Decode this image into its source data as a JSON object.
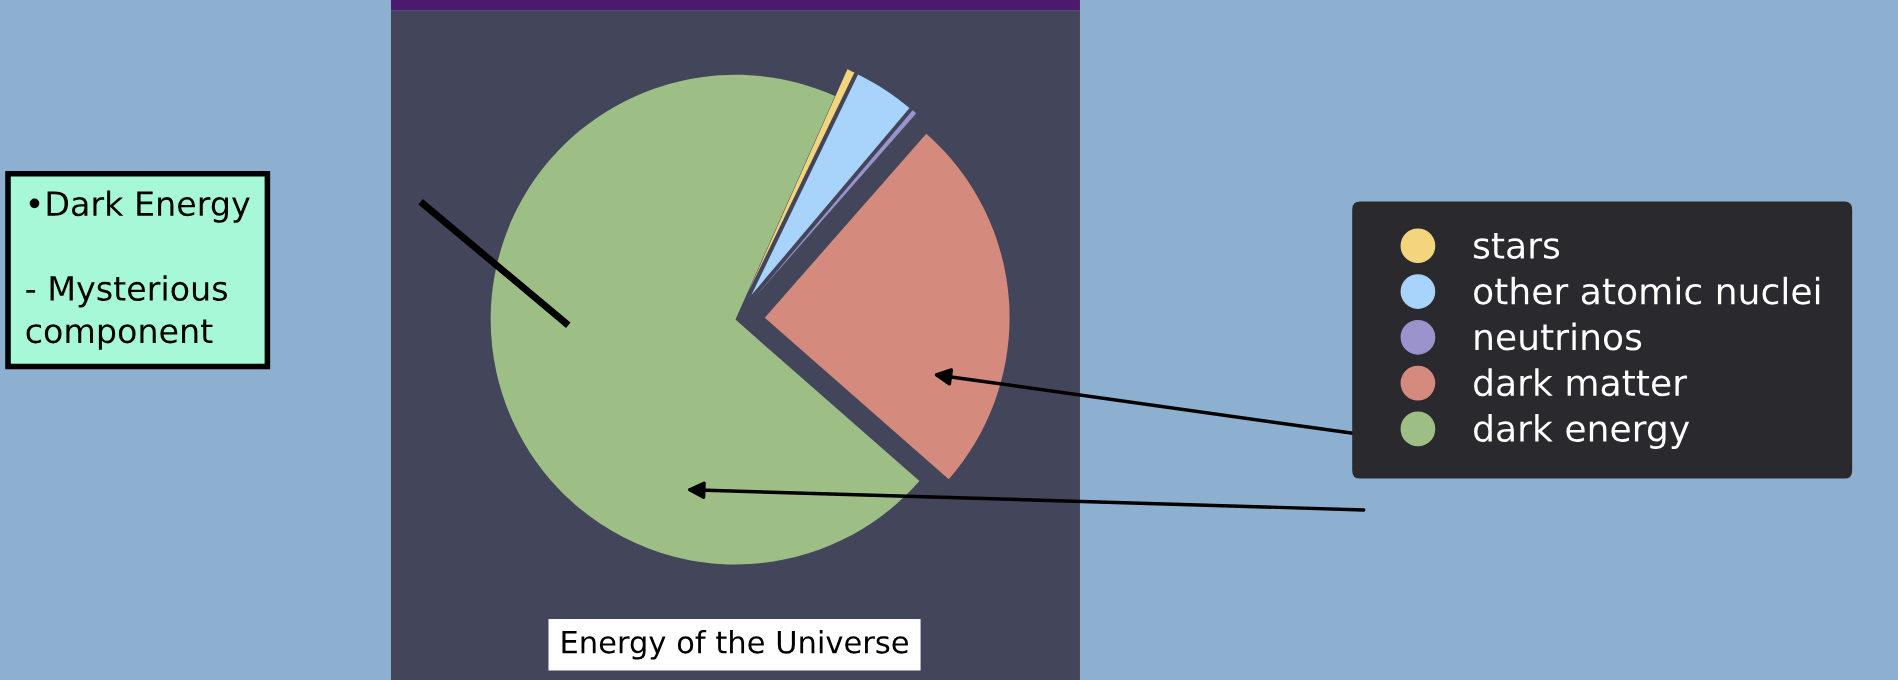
{
  "chart_data": {
    "type": "pie",
    "title": "Energy of the Universe",
    "categories": [
      "stars",
      "other atomic nuclei",
      "neutrinos",
      "dark matter",
      "dark energy"
    ],
    "values": [
      0.5,
      4,
      0.3,
      25,
      70.2
    ],
    "colors": [
      "#f3d67c",
      "#a8d3fa",
      "#9a93cc",
      "#d58a7e",
      "#9dbf86"
    ],
    "legend": "right",
    "annotations": [
      "•Dark Energy\n\n- Mysterious\ncomponent"
    ]
  }
}
